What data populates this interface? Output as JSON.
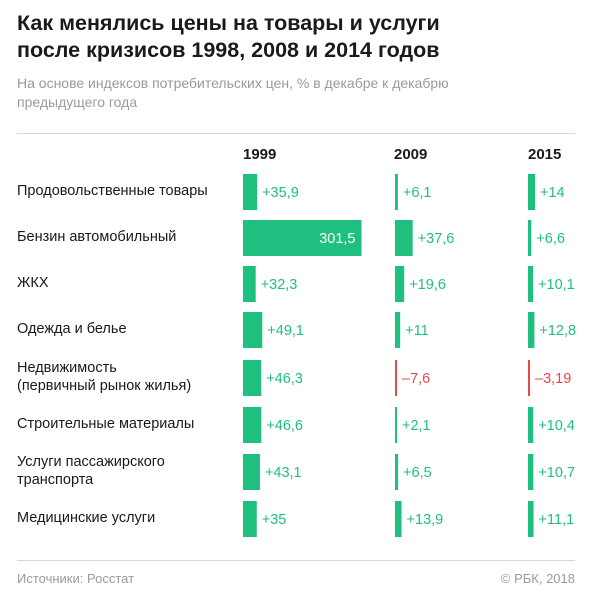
{
  "title_line1": "Как менялись цены на товары и услуги",
  "title_line2": "после кризисов 1998, 2008 и 2014 годов",
  "subtitle_line1": "На основе индексов потребительских цен, % в декабре к декабрю",
  "subtitle_line2": "предыдущего года",
  "source": "Источники: Росстат",
  "copyright": "© РБК, 2018",
  "colors": {
    "positive": "#1fbf7f",
    "negative": "#e8474a",
    "text": "#1a1a1a",
    "muted": "#9a9a9a"
  },
  "chart_data": {
    "type": "bar",
    "series": [
      {
        "name": "1999",
        "values": [
          "+35,9",
          "301,5",
          "+32,3",
          "+49,1",
          "+46,3",
          "+46,6",
          "+43,1",
          "+35"
        ],
        "numeric": [
          35.9,
          301.5,
          32.3,
          49.1,
          46.3,
          46.6,
          43.1,
          35
        ]
      },
      {
        "name": "2009",
        "values": [
          "+6,1",
          "+37,6",
          "+19,6",
          "+11",
          "–7,6",
          "+2,1",
          "+6,5",
          "+13,9"
        ],
        "numeric": [
          6.1,
          37.6,
          19.6,
          11,
          -7.6,
          2.1,
          6.5,
          13.9
        ]
      },
      {
        "name": "2015",
        "values": [
          "+14",
          "+6,6",
          "+10,1",
          "+12,8",
          "–3,19",
          "+10,4",
          "+10,7",
          "+11,1"
        ],
        "numeric": [
          14,
          6.6,
          10.1,
          12.8,
          -3.19,
          10.4,
          10.7,
          11.1
        ]
      }
    ],
    "categories": [
      [
        "Продовольственные товары"
      ],
      [
        "Бензин автомобильный"
      ],
      [
        "ЖКХ"
      ],
      [
        "Одежда и белье"
      ],
      [
        "Недвижимость",
        "(первичный рынок жилья)"
      ],
      [
        "Строительные материалы"
      ],
      [
        "Услуги пассажирского",
        "транспорта"
      ],
      [
        "Медицинские услуги"
      ]
    ]
  }
}
